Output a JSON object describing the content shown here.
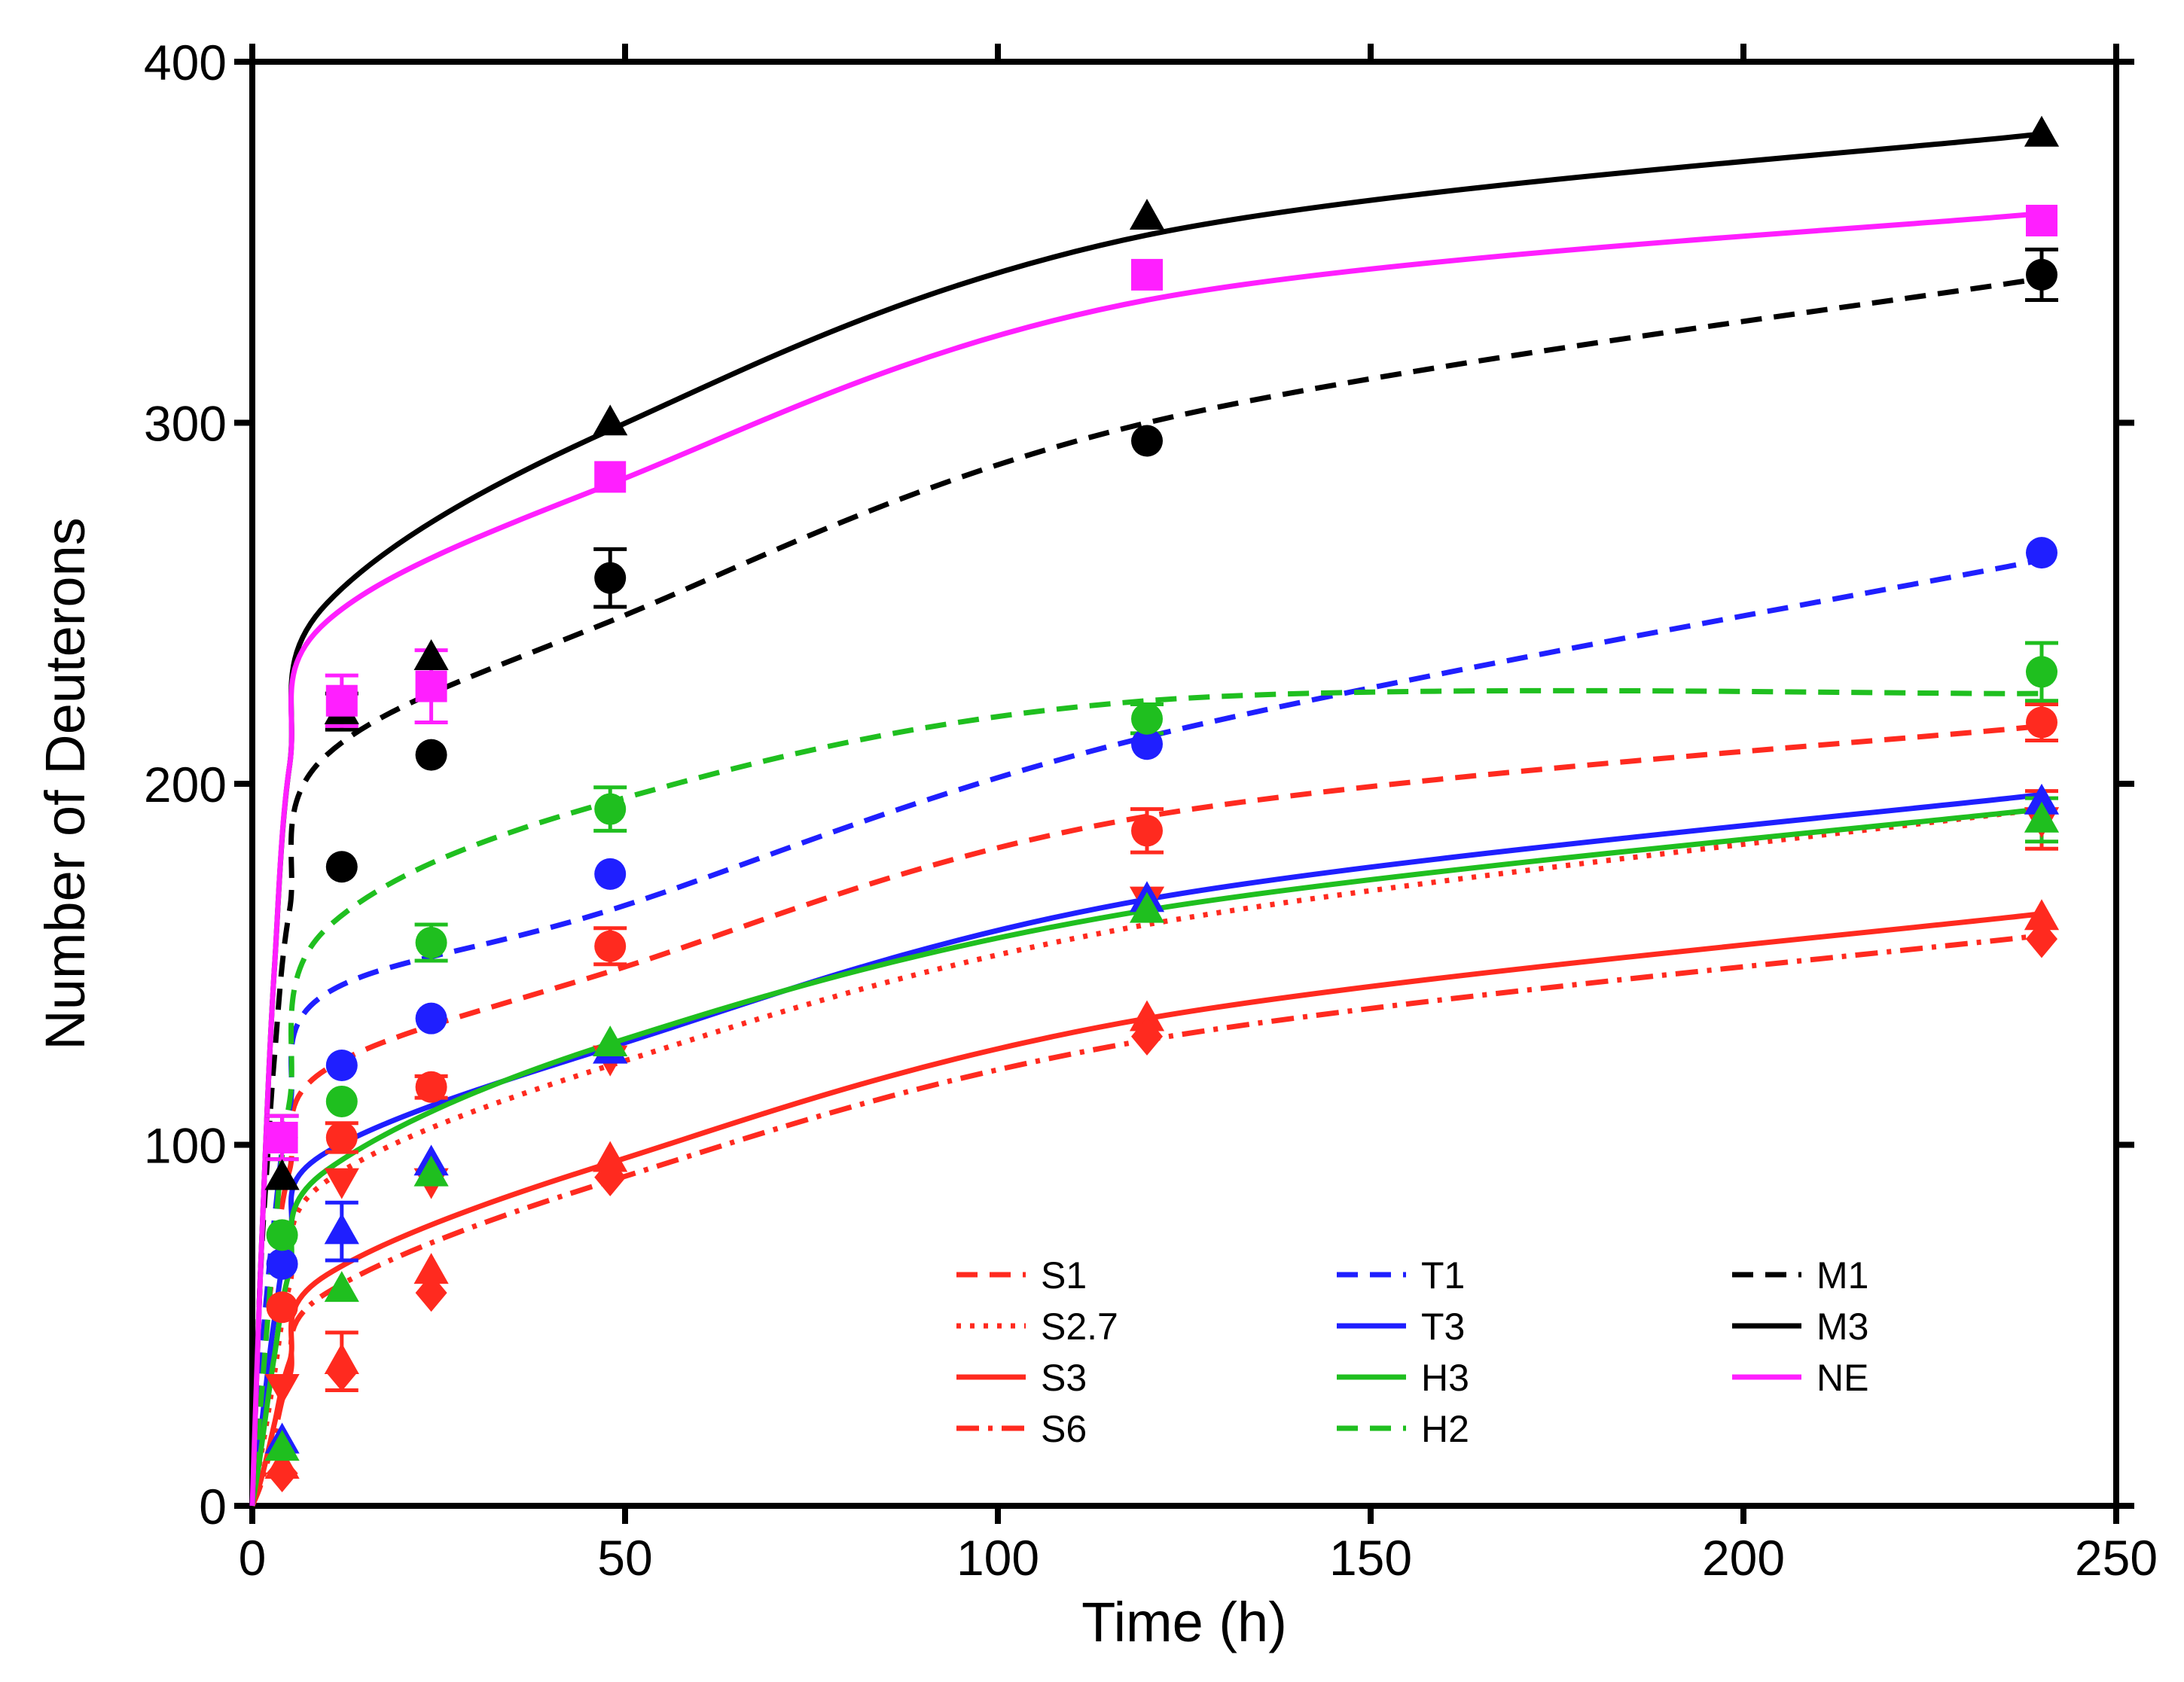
{
  "chart_data": {
    "type": "line",
    "title": "",
    "xlabel": "Time (h)",
    "ylabel": "Number of Deuterons",
    "xlim": [
      0,
      250
    ],
    "ylim": [
      0,
      400
    ],
    "xticks": [
      0,
      50,
      100,
      150,
      200,
      250
    ],
    "yticks": [
      0,
      100,
      200,
      300,
      400
    ],
    "grid": false,
    "legend_position": "bottom-right",
    "x": [
      4,
      12,
      24,
      48,
      120,
      240
    ],
    "series": [
      {
        "name": "S1",
        "color": "#ff2a1f",
        "dash": "dashed",
        "marker": "circle",
        "values": [
          55,
          102,
          116,
          155,
          187,
          217
        ],
        "errors": [
          0,
          4,
          3,
          5,
          6,
          5
        ],
        "fit": [
          0,
          30,
          52,
          68,
          93,
          121,
          148,
          191,
          216
        ]
      },
      {
        "name": "S2.7",
        "color": "#ff2a1f",
        "dash": "dotted",
        "marker": "triangle-down",
        "values": [
          33,
          90,
          90,
          124,
          168,
          190
        ],
        "errors": [
          0,
          0,
          0,
          0,
          0,
          8
        ],
        "fit": [
          0,
          12,
          24,
          37,
          61,
          90,
          122,
          161,
          193
        ]
      },
      {
        "name": "S3",
        "color": "#ff2a1f",
        "dash": "solid",
        "marker": "triangle-up",
        "values": [
          11,
          40,
          65,
          96,
          135,
          163
        ],
        "errors": [
          0,
          8,
          0,
          0,
          0,
          0
        ],
        "fit": [
          0,
          6,
          14,
          23,
          40,
          64,
          95,
          135,
          164
        ]
      },
      {
        "name": "S6",
        "color": "#ff2a1f",
        "dash": "dashdot",
        "marker": "diamond",
        "values": [
          9,
          37,
          59,
          91,
          130,
          157
        ],
        "errors": [
          0,
          0,
          0,
          0,
          0,
          0
        ],
        "fit": [
          0,
          5,
          12,
          20,
          36,
          59,
          90,
          129,
          158
        ]
      },
      {
        "name": "T1",
        "color": "#1f1fff",
        "dash": "dashed",
        "marker": "circle",
        "values": [
          67,
          122,
          135,
          175,
          211,
          264
        ],
        "errors": [
          0,
          0,
          0,
          0,
          0,
          0
        ],
        "fit": [
          0,
          35,
          60,
          80,
          110,
          142,
          165,
          213,
          262
        ]
      },
      {
        "name": "T3",
        "color": "#1f1fff",
        "dash": "solid",
        "marker": "triangle-up",
        "values": [
          18,
          76,
          95,
          126,
          168,
          195
        ],
        "errors": [
          0,
          8,
          0,
          0,
          0,
          0
        ],
        "fit": [
          0,
          18,
          36,
          52,
          75,
          98,
          127,
          168,
          197
        ]
      },
      {
        "name": "H3",
        "color": "#1fbf1f",
        "dash": "solid",
        "marker": "triangle-up",
        "values": [
          16,
          60,
          92,
          128,
          165,
          190
        ],
        "errors": [
          0,
          0,
          0,
          0,
          0,
          6
        ],
        "fit": [
          0,
          13,
          28,
          42,
          65,
          93,
          128,
          165,
          193
        ]
      },
      {
        "name": "H2",
        "color": "#1fbf1f",
        "dash": "dashed",
        "marker": "circle",
        "values": [
          75,
          112,
          156,
          193,
          218,
          231
        ],
        "errors": [
          0,
          0,
          5,
          6,
          4,
          8
        ],
        "fit": [
          0,
          25,
          50,
          75,
          112,
          160,
          195,
          223,
          225
        ]
      },
      {
        "name": "M1",
        "color": "#000000",
        "dash": "dashed",
        "marker": "circle",
        "values": [
          102,
          177,
          208,
          257,
          295,
          341
        ],
        "errors": [
          6,
          0,
          0,
          8,
          0,
          7
        ],
        "fit": [
          0,
          60,
          95,
          125,
          165,
          208,
          245,
          300,
          340
        ]
      },
      {
        "name": "M3",
        "color": "#000000",
        "dash": "solid",
        "marker": "triangle-up",
        "values": [
          91,
          220,
          235,
          300,
          357,
          380
        ],
        "errors": [
          0,
          5,
          0,
          0,
          0,
          0
        ],
        "fit": [
          0,
          60,
          110,
          150,
          205,
          250,
          298,
          352,
          380
        ]
      },
      {
        "name": "NE",
        "color": "#ff1fff",
        "dash": "solid",
        "marker": "square",
        "values": [
          102,
          223,
          227,
          285,
          341,
          356
        ],
        "errors": [
          6,
          7,
          10,
          0,
          0,
          0
        ],
        "fit": [
          0,
          60,
          110,
          150,
          205,
          245,
          283,
          334,
          358
        ]
      }
    ],
    "fit_x": [
      0,
      1,
      2,
      3,
      5,
      10,
      48,
      120,
      240
    ]
  }
}
